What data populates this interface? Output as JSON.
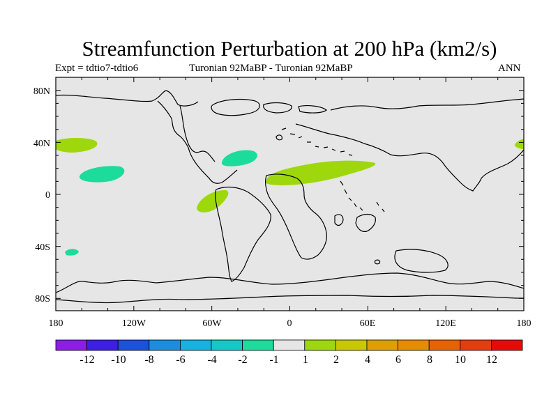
{
  "title": "Streamfunction Perturbation at 200 hPa (km2/s)",
  "subtitle_left": "Expt = tdtio7-tdtio6",
  "subtitle_center": "Turonian  92MaBP - Turonian  92MaBP",
  "subtitle_right": "ANN",
  "colors": {
    "ocean": "#e6e6e6",
    "positive": "#9ed80c",
    "negative": "#1bdc9a",
    "coast": "#000000"
  },
  "axes": {
    "lat_ticks": [
      "80N",
      "40N",
      "0",
      "40S",
      "80S"
    ],
    "lon_ticks": [
      "180",
      "120W",
      "60W",
      "0",
      "60E",
      "120E",
      "180"
    ]
  },
  "colorbar": {
    "colors": [
      "#8a1ee6",
      "#3c1ee6",
      "#1e50dc",
      "#1e8cdc",
      "#14b4dc",
      "#14c8c8",
      "#1bdc9a",
      "#e6e6e6",
      "#9ed80c",
      "#c8c800",
      "#dca000",
      "#e68c00",
      "#e66400",
      "#e63c14",
      "#e60a0a"
    ],
    "labels": [
      "-12",
      "-10",
      "-8",
      "-6",
      "-4",
      "-2",
      "-1",
      "1",
      "2",
      "4",
      "6",
      "8",
      "10",
      "12"
    ]
  }
}
